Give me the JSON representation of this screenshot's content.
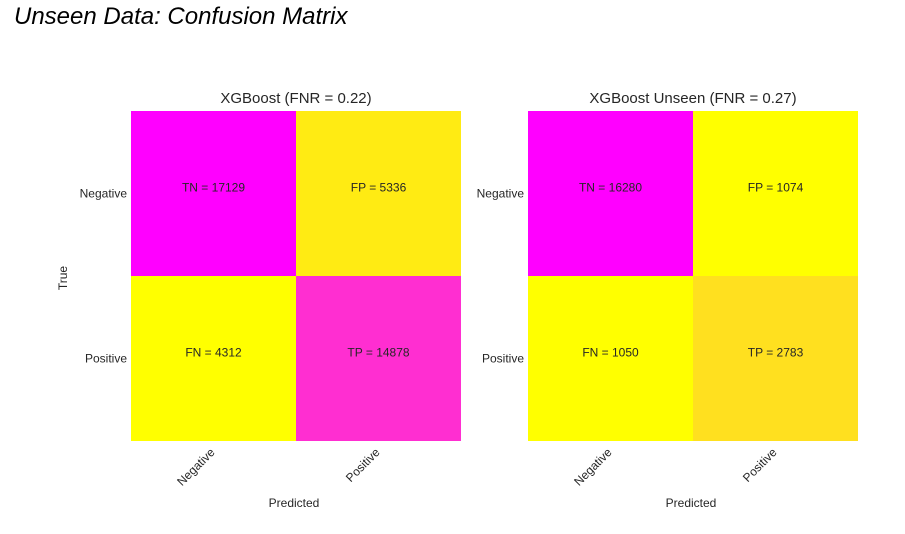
{
  "figure": {
    "title": "Unseen Data: Confusion Matrix"
  },
  "chart_data": [
    {
      "type": "heatmap",
      "title": "XGBoost (FNR = 0.22)",
      "xlabel": "Predicted",
      "ylabel": "True",
      "x_categories": [
        "Negative",
        "Positive"
      ],
      "y_categories": [
        "Negative",
        "Positive"
      ],
      "values": [
        [
          17129,
          5336
        ],
        [
          4312,
          14878
        ]
      ],
      "cell_labels": [
        [
          "TN = 17129",
          "FP = 5336"
        ],
        [
          "FN = 4312",
          "TP = 14878"
        ]
      ],
      "colors": [
        [
          "#ff00ff",
          "#ffeb13"
        ],
        [
          "#ffff00",
          "#ff2ed1"
        ]
      ],
      "colormap": "spring"
    },
    {
      "type": "heatmap",
      "title": "XGBoost Unseen (FNR = 0.27)",
      "xlabel": "Predicted",
      "ylabel": "",
      "x_categories": [
        "Negative",
        "Positive"
      ],
      "y_categories": [
        "Negative",
        "Positive"
      ],
      "values": [
        [
          16280,
          1074
        ],
        [
          1050,
          2783
        ]
      ],
      "cell_labels": [
        [
          "TN = 16280",
          "FP = 1074"
        ],
        [
          "FN = 1050",
          "TP = 2783"
        ]
      ],
      "colors": [
        [
          "#ff00ff",
          "#ffff00"
        ],
        [
          "#ffff00",
          "#ffe01f"
        ]
      ],
      "colormap": "spring"
    }
  ]
}
